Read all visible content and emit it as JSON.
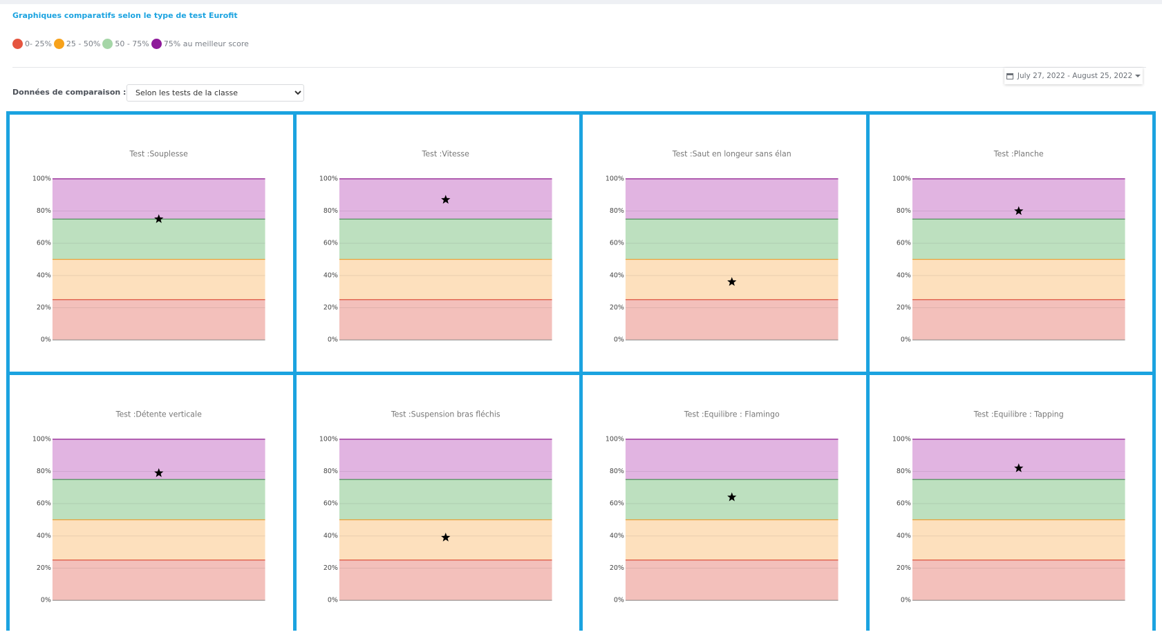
{
  "header": {
    "title": "Graphiques comparatifs selon le type de test Eurofit"
  },
  "legend": {
    "items": [
      {
        "label": "0- 25%",
        "color": "#e5553f"
      },
      {
        "label": "25 - 50%",
        "color": "#f7a21b"
      },
      {
        "label": "50 - 75%",
        "color": "#a5d6a7"
      },
      {
        "label": "75% au meilleur score",
        "color": "#8e1a9a"
      }
    ]
  },
  "date_range": "July 27, 2022 - August 25, 2022",
  "comparison": {
    "label": "Données de comparaison :",
    "selected": "Selon les tests de la classe"
  },
  "bands": {
    "limits": [
      0,
      25,
      50,
      75,
      100
    ],
    "fills": [
      "#f3c0bb",
      "#fde0bd",
      "#bde0bf",
      "#e1b4e1"
    ],
    "lines": [
      "#d9432f",
      "#e8a13a",
      "#3f8a4e",
      "#8e1a8e"
    ]
  },
  "chart_data": [
    {
      "type": "star",
      "title": "Test :Souplesse",
      "values": [
        75
      ],
      "color": "#000000",
      "ylim": [
        0,
        100
      ],
      "yticks": [
        {
          "value": 0,
          "label": "0%"
        },
        {
          "value": 20,
          "label": "20%"
        },
        {
          "value": 40,
          "label": "40%"
        },
        {
          "value": 60,
          "label": "60%"
        },
        {
          "value": 80,
          "label": "80%"
        },
        {
          "value": 100,
          "label": "100%"
        }
      ],
      "grid": true
    },
    {
      "type": "star",
      "title": "Test :Vitesse",
      "values": [
        87
      ],
      "color": "#000000",
      "ylim": [
        0,
        100
      ],
      "yticks": [
        {
          "value": 0,
          "label": "0%"
        },
        {
          "value": 20,
          "label": "20%"
        },
        {
          "value": 40,
          "label": "40%"
        },
        {
          "value": 60,
          "label": "60%"
        },
        {
          "value": 80,
          "label": "80%"
        },
        {
          "value": 100,
          "label": "100%"
        }
      ],
      "grid": true
    },
    {
      "type": "star",
      "title": "Test :Saut en longeur sans élan",
      "values": [
        36
      ],
      "color": "#000000",
      "ylim": [
        0,
        100
      ],
      "yticks": [
        {
          "value": 0,
          "label": "0%"
        },
        {
          "value": 20,
          "label": "20%"
        },
        {
          "value": 40,
          "label": "40%"
        },
        {
          "value": 60,
          "label": "60%"
        },
        {
          "value": 80,
          "label": "80%"
        },
        {
          "value": 100,
          "label": "100%"
        }
      ],
      "grid": true
    },
    {
      "type": "star",
      "title": "Test :Planche",
      "values": [
        80
      ],
      "color": "#000000",
      "ylim": [
        0,
        100
      ],
      "yticks": [
        {
          "value": 0,
          "label": "0%"
        },
        {
          "value": 20,
          "label": "20%"
        },
        {
          "value": 40,
          "label": "40%"
        },
        {
          "value": 60,
          "label": "60%"
        },
        {
          "value": 80,
          "label": "80%"
        },
        {
          "value": 100,
          "label": "100%"
        }
      ],
      "grid": true
    },
    {
      "type": "star",
      "title": "Test :Détente verticale",
      "values": [
        79
      ],
      "color": "#000000",
      "ylim": [
        0,
        100
      ],
      "yticks": [
        {
          "value": 0,
          "label": "0%"
        },
        {
          "value": 20,
          "label": "20%"
        },
        {
          "value": 40,
          "label": "40%"
        },
        {
          "value": 60,
          "label": "60%"
        },
        {
          "value": 80,
          "label": "80%"
        },
        {
          "value": 100,
          "label": "100%"
        }
      ],
      "grid": true
    },
    {
      "type": "star",
      "title": "Test :Suspension bras fléchis",
      "values": [
        39
      ],
      "color": "#000000",
      "ylim": [
        0,
        100
      ],
      "yticks": [
        {
          "value": 0,
          "label": "0%"
        },
        {
          "value": 20,
          "label": "20%"
        },
        {
          "value": 40,
          "label": "40%"
        },
        {
          "value": 60,
          "label": "60%"
        },
        {
          "value": 80,
          "label": "80%"
        },
        {
          "value": 100,
          "label": "100%"
        }
      ],
      "grid": true
    },
    {
      "type": "star",
      "title": "Test :Equilibre : Flamingo",
      "values": [
        64
      ],
      "color": "#000000",
      "ylim": [
        0,
        100
      ],
      "yticks": [
        {
          "value": 0,
          "label": "0%"
        },
        {
          "value": 20,
          "label": "20%"
        },
        {
          "value": 40,
          "label": "40%"
        },
        {
          "value": 60,
          "label": "60%"
        },
        {
          "value": 80,
          "label": "80%"
        },
        {
          "value": 100,
          "label": "100%"
        }
      ],
      "grid": true
    },
    {
      "type": "star",
      "title": "Test :Equilibre : Tapping",
      "values": [
        82
      ],
      "color": "#000000",
      "ylim": [
        0,
        100
      ],
      "yticks": [
        {
          "value": 0,
          "label": "0%"
        },
        {
          "value": 20,
          "label": "20%"
        },
        {
          "value": 40,
          "label": "40%"
        },
        {
          "value": 60,
          "label": "60%"
        },
        {
          "value": 80,
          "label": "80%"
        },
        {
          "value": 100,
          "label": "100%"
        }
      ],
      "grid": true
    }
  ]
}
